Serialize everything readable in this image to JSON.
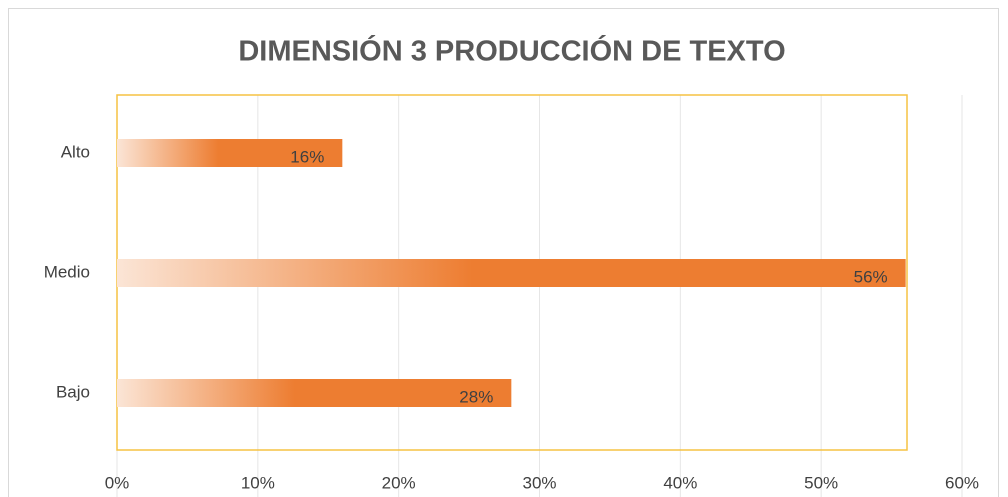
{
  "chart_data": {
    "type": "bar",
    "orientation": "horizontal",
    "title": "DIMENSIÓN  3  PRODUCCIÓN DE TEXTO",
    "categories": [
      "Alto",
      "Medio",
      "Bajo"
    ],
    "values": [
      16,
      56,
      28
    ],
    "value_labels": [
      "16%",
      "56%",
      "28%"
    ],
    "color": "#ed7d31",
    "xlim": [
      0,
      60
    ],
    "xticks": [
      {
        "value": 0,
        "label": "0%"
      },
      {
        "value": 10,
        "label": "10%"
      },
      {
        "value": 20,
        "label": "20%"
      },
      {
        "value": 30,
        "label": "30%"
      },
      {
        "value": 40,
        "label": "40%"
      },
      {
        "value": 50,
        "label": "50%"
      },
      {
        "value": 60,
        "label": "60%"
      }
    ],
    "grid": true
  }
}
